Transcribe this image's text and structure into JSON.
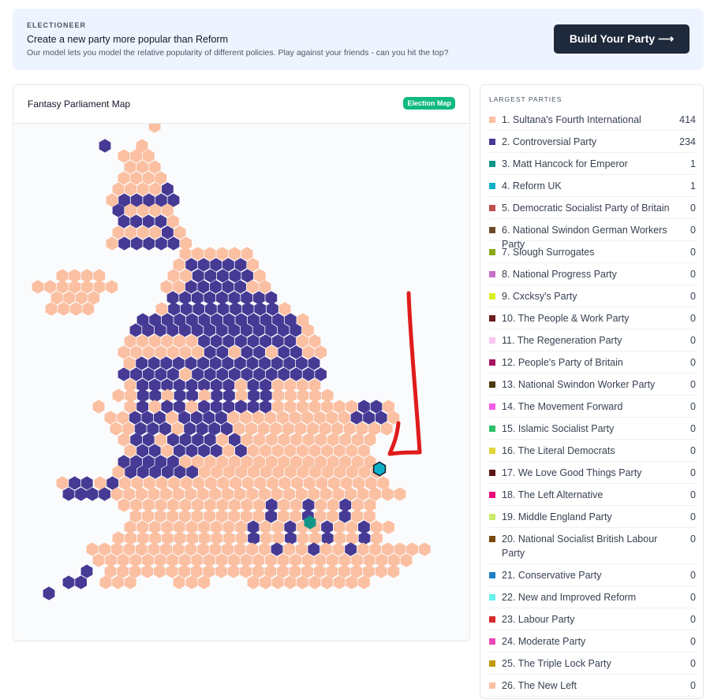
{
  "banner": {
    "eyebrow": "ELECTIONEER",
    "headline": "Create a new party more popular than Reform",
    "subtext": "Our model lets you model the relative popularity of different policies. Play against your friends - can you hit the top?",
    "cta_label": "Build Your Party ⟶"
  },
  "map": {
    "title": "Fantasy Parliament Map",
    "badge": "Election Map",
    "seat_colors": {
      "sultanas": "#fbbfa1",
      "controversial": "#463a95",
      "hancock": "#14958a",
      "reform": "#10afc9"
    },
    "highlighted_party": "reform"
  },
  "parties": {
    "heading": "LARGEST PARTIES",
    "items": [
      {
        "name": "1. Sultana's Fourth International",
        "seats": "414",
        "color": "#fbbfa1"
      },
      {
        "name": "2. Controversial Party",
        "seats": "234",
        "color": "#463a95"
      },
      {
        "name": "3. Matt Hancock for Emperor",
        "seats": "1",
        "color": "#14958a"
      },
      {
        "name": "4. Reform UK",
        "seats": "1",
        "color": "#10afc9"
      },
      {
        "name": "5. Democratic Socialist Party of Britain",
        "seats": "0",
        "color": "#c0504d"
      },
      {
        "name": "6. National Swindon German Workers Party",
        "seats": "0",
        "color": "#6b4c2a"
      },
      {
        "name": "7. Slough Surrogates",
        "seats": "0",
        "color": "#8aaa1c"
      },
      {
        "name": "8. National Progress Party",
        "seats": "0",
        "color": "#c86fc9"
      },
      {
        "name": "9. Cxcksy's Party",
        "seats": "0",
        "color": "#d7f020"
      },
      {
        "name": "10. The People & Work Party",
        "seats": "0",
        "color": "#6e1e1e"
      },
      {
        "name": "11. The Regeneration Party",
        "seats": "0",
        "color": "#f9c7ee"
      },
      {
        "name": "12. People's Party of Britain",
        "seats": "0",
        "color": "#a3155f"
      },
      {
        "name": "13. National Swindon Worker Party",
        "seats": "0",
        "color": "#4a3a0a"
      },
      {
        "name": "14. The Movement Forward",
        "seats": "0",
        "color": "#f45ee6"
      },
      {
        "name": "15. Islamic Socialist Party",
        "seats": "0",
        "color": "#2fc06a"
      },
      {
        "name": "16. The Literal Democrats",
        "seats": "0",
        "color": "#e0d43a"
      },
      {
        "name": "17. We Love Good Things Party",
        "seats": "0",
        "color": "#5e1414"
      },
      {
        "name": "18. The Left Alternative",
        "seats": "0",
        "color": "#ea0a78"
      },
      {
        "name": "19. Middle England Party",
        "seats": "0",
        "color": "#c9ea6a"
      },
      {
        "name": "20. National Socialist British Labour Party",
        "seats": "0",
        "color": "#7a4a0a"
      },
      {
        "name": "21. Conservative Party",
        "seats": "0",
        "color": "#1a7ec8"
      },
      {
        "name": "22. New and Improved Reform",
        "seats": "0",
        "color": "#6af0ee"
      },
      {
        "name": "23. Labour Party",
        "seats": "0",
        "color": "#d42a2a"
      },
      {
        "name": "24. Moderate Party",
        "seats": "0",
        "color": "#ea4ab7"
      },
      {
        "name": "25. The Triple Lock Party",
        "seats": "0",
        "color": "#c49a0a"
      },
      {
        "name": "26. The New Left",
        "seats": "0",
        "color": "#fbbfa1"
      }
    ]
  }
}
